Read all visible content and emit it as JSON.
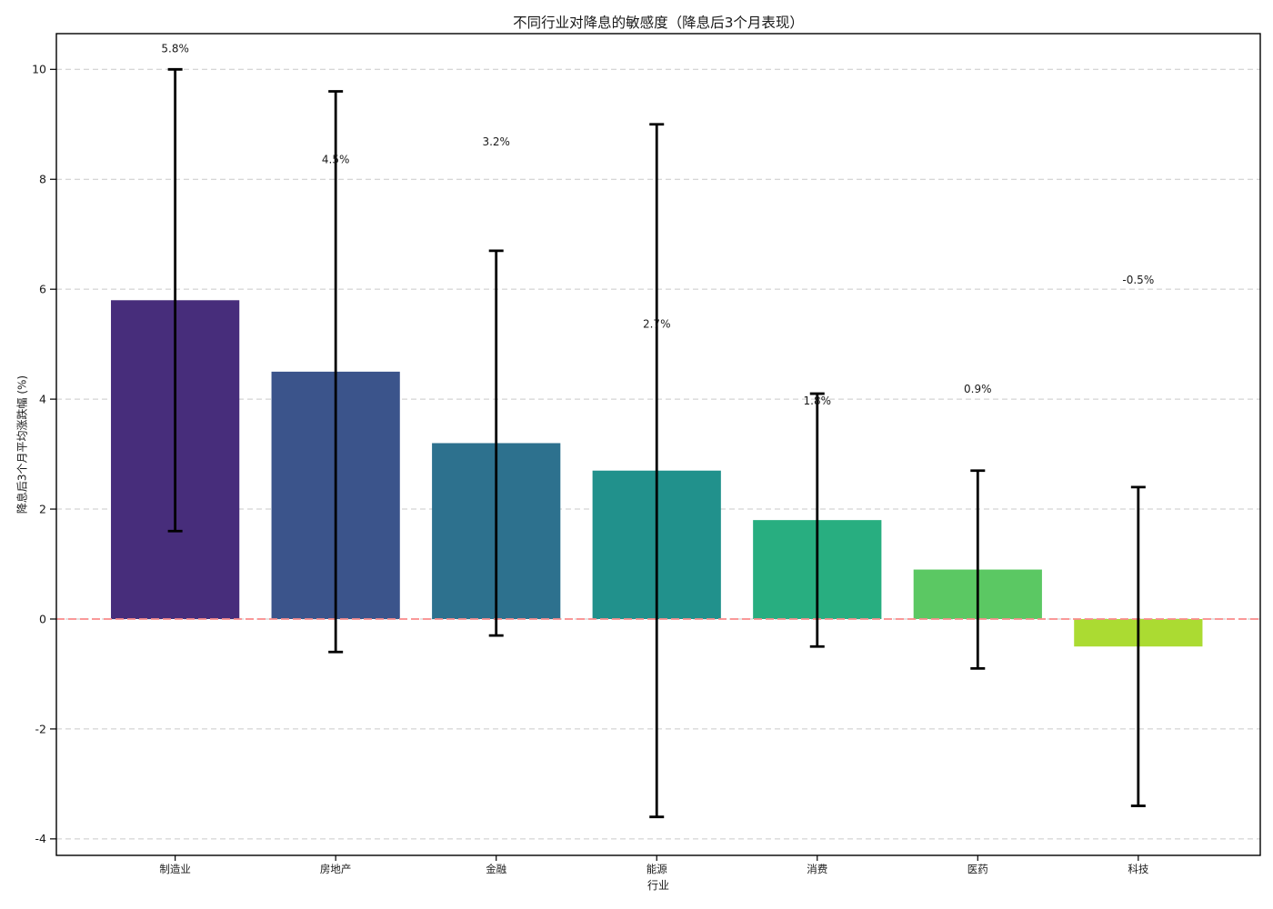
{
  "title": "不同行业对降息的敏感度（降息后3个月表现）",
  "chart_data": {
    "type": "bar",
    "title": "不同行业对降息的敏感度（降息后3个月表现）",
    "xlabel": "行业",
    "ylabel": "降息后3个月平均涨跌幅 (%)",
    "categories": [
      "制造业",
      "房地产",
      "金融",
      "能源",
      "消费",
      "医药",
      "科技"
    ],
    "values": [
      5.8,
      4.5,
      3.2,
      2.7,
      1.8,
      0.9,
      -0.5
    ],
    "errors": [
      4.2,
      5.1,
      3.5,
      6.3,
      2.3,
      1.8,
      2.9
    ],
    "value_labels": [
      "5.8%",
      "4.5%",
      "3.2%",
      "2.7%",
      "1.8%",
      "0.9%",
      "-0.5%"
    ],
    "label_y": [
      10.38,
      8.36,
      8.68,
      5.37,
      3.97,
      4.18,
      6.17
    ],
    "bar_colors": [
      "#472d7b",
      "#3b548b",
      "#2d718e",
      "#21918c",
      "#28ae80",
      "#5bc863",
      "#abdb32"
    ],
    "yticks": [
      -4,
      -2,
      0,
      2,
      4,
      6,
      8,
      10
    ],
    "ylim": [
      -4.3,
      10.65
    ],
    "xlim": [
      -0.74,
      6.76
    ],
    "bar_width": 0.8,
    "grid": "horizontal-dashed",
    "legend": "none",
    "grid_color": "#c9c9c9",
    "zero_line_color": "#f98b8b",
    "error_color": "#000000",
    "spine_color": "#000000"
  }
}
